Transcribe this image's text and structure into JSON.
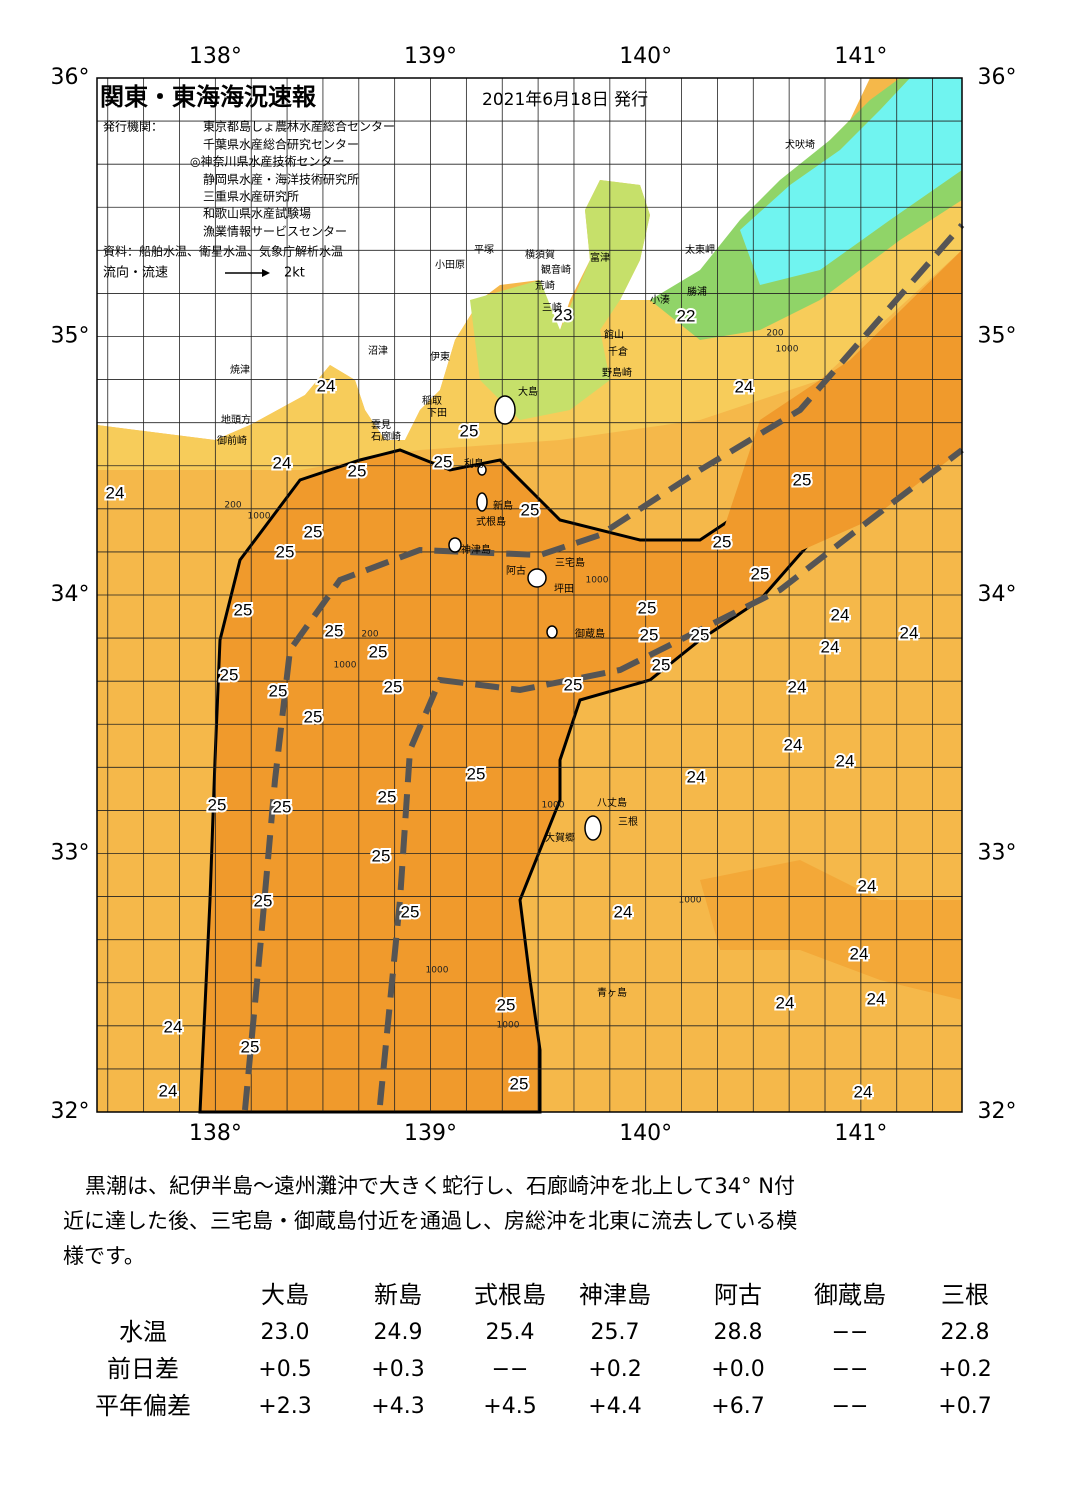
{
  "header": {
    "title": "関東・東海海況速報",
    "date": "2021年6月18日 発行",
    "issuer_label": "発行機関：",
    "issuers": [
      "東京都島しょ農林水産総合センター",
      "千葉県水産総合研究センター",
      "◎神奈川県水産技術センター",
      "静岡県水産・海洋技術研究所",
      "三重県水産研究所",
      "和歌山県水産試験場",
      "漁業情報サービスセンター"
    ],
    "source": "資料：船舶水温、衛星水温、気象庁解析水温",
    "legend_label": "流向・流速",
    "legend_scale": "2kt"
  },
  "map": {
    "lon_range": [
      137.45,
      141.47
    ],
    "lat_range": [
      32,
      36
    ],
    "lon_ticks": [
      {
        "value": 138,
        "label": "138°"
      },
      {
        "value": 139,
        "label": "139°"
      },
      {
        "value": 140,
        "label": "140°"
      },
      {
        "value": 141,
        "label": "141°"
      }
    ],
    "lat_ticks": [
      {
        "value": 32,
        "label": "32°"
      },
      {
        "value": 33,
        "label": "33°"
      },
      {
        "value": 34,
        "label": "34°"
      },
      {
        "value": 35,
        "label": "35°"
      },
      {
        "value": 36,
        "label": "36°"
      }
    ],
    "contour_labels": [
      "24",
      "24",
      "24",
      "25",
      "25",
      "25",
      "25",
      "25",
      "25",
      "25",
      "25",
      "25",
      "25",
      "25",
      "25",
      "25",
      "25",
      "25",
      "25",
      "25",
      "25",
      "25",
      "25",
      "25",
      "24",
      "24",
      "24",
      "24",
      "24",
      "24",
      "24",
      "25",
      "25",
      "25",
      "25",
      "25",
      "24",
      "25",
      "25",
      "24",
      "24",
      "24",
      "24",
      "25",
      "24",
      "25",
      "25",
      "24",
      "24",
      "24",
      "22",
      "23"
    ],
    "place_names": [
      "犬吠埼",
      "太東岬",
      "勝浦",
      "小湊",
      "富津",
      "横須賀",
      "観音崎",
      "平塚",
      "小田原",
      "荒崎",
      "三崎",
      "館山",
      "千倉",
      "野島崎",
      "沼津",
      "伊東",
      "焼津",
      "大島",
      "稲取",
      "下田",
      "雲見",
      "石廊崎",
      "地頭方",
      "御前崎",
      "利島",
      "新島",
      "式根島",
      "神津島",
      "三宅島",
      "阿古",
      "坪田",
      "御蔵島",
      "八丈島",
      "三根",
      "大賀郷",
      "青ヶ島"
    ],
    "depth_labels": [
      "200",
      "1000",
      "200",
      "1000",
      "1000",
      "200",
      "1000",
      "1000",
      "1000",
      "1000",
      "1000"
    ]
  },
  "description": {
    "lines": [
      "黒潮は、紀伊半島～遠州灘沖で大きく蛇行し、石廊崎沖を北上して34° N付",
      "近に達した後、三宅島・御蔵島付近を通過し、房総沖を北東に流去している模",
      "様です。"
    ]
  },
  "table": {
    "columns": [
      "大島",
      "新島",
      "式根島",
      "神津島",
      "阿古",
      "御蔵島",
      "三根"
    ],
    "rows": [
      {
        "label": "水温",
        "cells": [
          "23.0",
          "24.9",
          "25.4",
          "25.7",
          "28.8",
          "−−",
          "22.8"
        ]
      },
      {
        "label": "前日差",
        "cells": [
          "+0.5",
          "+0.3",
          "−−",
          "+0.2",
          "+0.0",
          "−−",
          "+0.2"
        ]
      },
      {
        "label": "平年偏差",
        "cells": [
          "+2.3",
          "+4.3",
          "+4.5",
          "+4.4",
          "+6.7",
          "−−",
          "+0.7"
        ]
      }
    ]
  }
}
